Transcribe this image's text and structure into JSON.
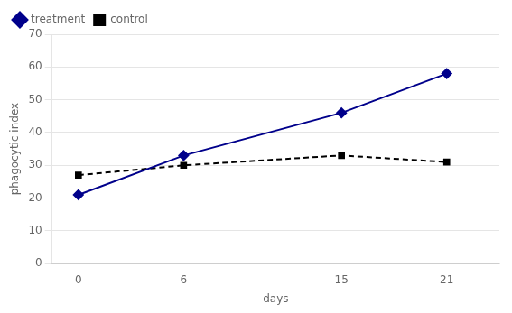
{
  "chart_data": {
    "type": "line",
    "x": [
      0,
      6,
      15,
      21
    ],
    "series": [
      {
        "name": "treatment",
        "color": "#00008B",
        "values": [
          21,
          33,
          46,
          58
        ],
        "marker": "diamond",
        "line_style": "solid"
      },
      {
        "name": "control",
        "color": "#000000",
        "values": [
          27,
          30,
          33,
          31
        ],
        "marker": "square",
        "line_style": "dashed"
      }
    ],
    "xlabel": "days",
    "ylabel": "phagocytic index",
    "xlim": [
      -1.5,
      24
    ],
    "xticks": [
      0,
      6,
      15,
      21
    ],
    "ylim": [
      0,
      70
    ],
    "yticks": [
      0,
      10,
      20,
      30,
      40,
      50,
      60,
      70
    ],
    "grid": "y",
    "legend": "upper left"
  }
}
